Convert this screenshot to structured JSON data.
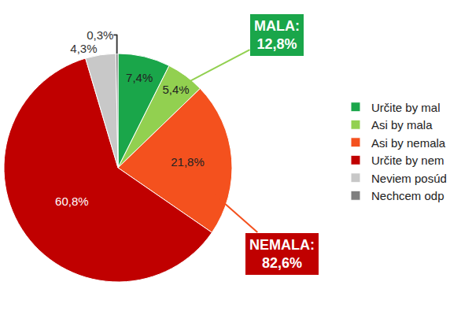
{
  "chart_data": {
    "type": "pie",
    "categories": [
      "Určite by mal",
      "Asi by mala",
      "Asi by nemala",
      "Určite by nem",
      "Neviem posúd",
      "Nechcem odp"
    ],
    "values": [
      7.4,
      5.4,
      21.8,
      60.8,
      4.3,
      0.3
    ],
    "value_labels": [
      "7,4%",
      "5,4%",
      "21,8%",
      "60,8%",
      "4,3%",
      "0,3%"
    ],
    "colors": [
      "#1aa64a",
      "#92d050",
      "#f4511e",
      "#c00000",
      "#c8c8c8",
      "#7f7f7f"
    ],
    "data_labels": true,
    "legend": "right",
    "annotations": [
      {
        "text": "MALA:",
        "value": 12.8,
        "value_label": "12,8%",
        "color": "#1aa64a"
      },
      {
        "text": "NEMALA:",
        "value": 82.6,
        "value_label": "82,6%",
        "color": "#c00000"
      }
    ]
  }
}
